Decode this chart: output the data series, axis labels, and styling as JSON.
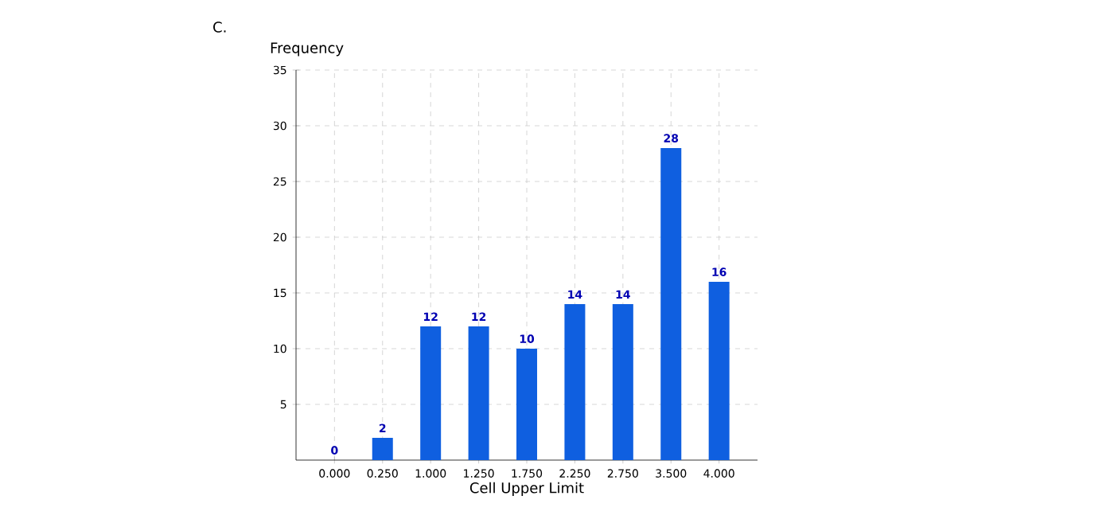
{
  "chart_data": {
    "type": "bar",
    "annotations": [
      "C."
    ],
    "xlabel": "Cell Upper Limit",
    "ylabel": "Frequency",
    "categories": [
      "0.000",
      "0.250",
      "1.000",
      "1.250",
      "1.750",
      "2.250",
      "2.750",
      "3.500",
      "4.000"
    ],
    "values": [
      0,
      2,
      12,
      12,
      10,
      14,
      14,
      28,
      16
    ],
    "color": "#0f5fe0",
    "ylim": [
      0,
      35
    ],
    "yticks": [
      5,
      10,
      15,
      20,
      25,
      30,
      35
    ],
    "grid": true,
    "data_labels": true
  }
}
